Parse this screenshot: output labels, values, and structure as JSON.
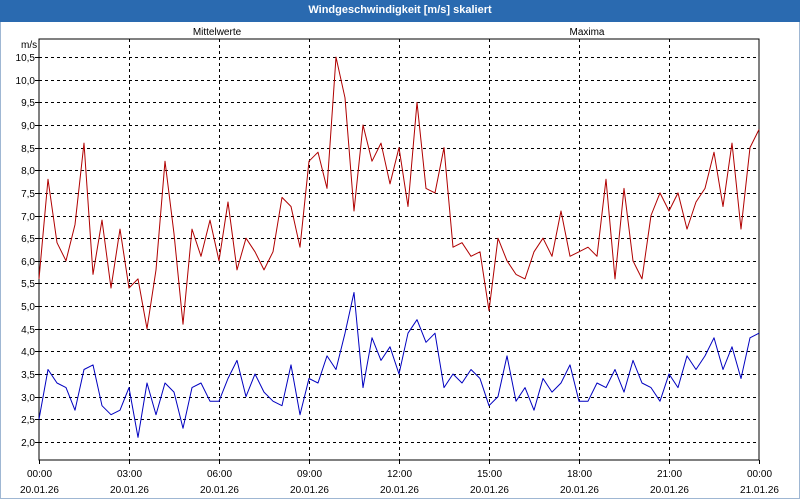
{
  "window": {
    "title": "Windgeschwindigkeit [m/s] skaliert"
  },
  "chart_data": {
    "type": "line",
    "title": "Windgeschwindigkeit [m/s] skaliert",
    "ylabel": "m/s",
    "ylim": [
      1.6,
      10.9
    ],
    "yticks": [
      "2,0",
      "2,5",
      "3,0",
      "3,5",
      "4,0",
      "4,5",
      "5,0",
      "5,5",
      "6,0",
      "6,5",
      "7,0",
      "7,5",
      "8,0",
      "8,5",
      "9,0",
      "9,5",
      "10,0",
      "10,5"
    ],
    "ytick_values": [
      2.0,
      2.5,
      3.0,
      3.5,
      4.0,
      4.5,
      5.0,
      5.5,
      6.0,
      6.5,
      7.0,
      7.5,
      8.0,
      8.5,
      9.0,
      9.5,
      10.0,
      10.5
    ],
    "xlim": [
      0,
      24
    ],
    "xticks": [
      {
        "time": "00:00",
        "date": "20.01.26",
        "h": 0
      },
      {
        "time": "03:00",
        "date": "20.01.26",
        "h": 3
      },
      {
        "time": "06:00",
        "date": "20.01.26",
        "h": 6
      },
      {
        "time": "09:00",
        "date": "20.01.26",
        "h": 9
      },
      {
        "time": "12:00",
        "date": "20.01.26",
        "h": 12
      },
      {
        "time": "15:00",
        "date": "20.01.26",
        "h": 15
      },
      {
        "time": "18:00",
        "date": "20.01.26",
        "h": 18
      },
      {
        "time": "21:00",
        "date": "20.01.26",
        "h": 21
      },
      {
        "time": "00:00",
        "date": "21.01.26",
        "h": 24
      }
    ],
    "grid": true,
    "series": [
      {
        "name": "Mittelwerte",
        "color": "#0000c0",
        "x": [
          0,
          0.3,
          0.6,
          0.9,
          1.2,
          1.5,
          1.8,
          2.1,
          2.4,
          2.7,
          3.0,
          3.3,
          3.6,
          3.9,
          4.2,
          4.5,
          4.8,
          5.1,
          5.4,
          5.7,
          6.0,
          6.3,
          6.6,
          6.9,
          7.2,
          7.5,
          7.8,
          8.1,
          8.4,
          8.7,
          9.0,
          9.3,
          9.6,
          9.9,
          10.2,
          10.5,
          10.8,
          11.1,
          11.4,
          11.7,
          12.0,
          12.3,
          12.6,
          12.9,
          13.2,
          13.5,
          13.8,
          14.1,
          14.4,
          14.7,
          15.0,
          15.3,
          15.6,
          15.9,
          16.2,
          16.5,
          16.8,
          17.1,
          17.4,
          17.7,
          18.0,
          18.3,
          18.6,
          18.9,
          19.2,
          19.5,
          19.8,
          20.1,
          20.4,
          20.7,
          21.0,
          21.3,
          21.6,
          21.9,
          22.2,
          22.5,
          22.8,
          23.1,
          23.4,
          23.7,
          24.0
        ],
        "values": [
          2.5,
          3.6,
          3.3,
          3.2,
          2.7,
          3.6,
          3.7,
          2.8,
          2.6,
          2.7,
          3.2,
          2.1,
          3.3,
          2.6,
          3.3,
          3.1,
          2.3,
          3.2,
          3.3,
          2.9,
          2.9,
          3.4,
          3.8,
          3.0,
          3.5,
          3.1,
          2.9,
          2.8,
          3.7,
          2.6,
          3.4,
          3.3,
          3.9,
          3.6,
          4.4,
          5.3,
          3.2,
          4.3,
          3.8,
          4.1,
          3.5,
          4.4,
          4.7,
          4.2,
          4.4,
          3.2,
          3.5,
          3.3,
          3.6,
          3.4,
          2.8,
          3.0,
          3.9,
          2.9,
          3.2,
          2.7,
          3.4,
          3.1,
          3.3,
          3.7,
          2.9,
          2.9,
          3.3,
          3.2,
          3.6,
          3.1,
          3.8,
          3.3,
          3.2,
          2.9,
          3.5,
          3.2,
          3.9,
          3.6,
          3.9,
          4.3,
          3.6,
          4.1,
          3.4,
          4.3,
          4.4
        ]
      },
      {
        "name": "Maxima",
        "color": "#b00000",
        "x": [
          0,
          0.3,
          0.6,
          0.9,
          1.2,
          1.5,
          1.8,
          2.1,
          2.4,
          2.7,
          3.0,
          3.3,
          3.6,
          3.9,
          4.2,
          4.5,
          4.8,
          5.1,
          5.4,
          5.7,
          6.0,
          6.3,
          6.6,
          6.9,
          7.2,
          7.5,
          7.8,
          8.1,
          8.4,
          8.7,
          9.0,
          9.3,
          9.6,
          9.9,
          10.2,
          10.5,
          10.8,
          11.1,
          11.4,
          11.7,
          12.0,
          12.3,
          12.6,
          12.9,
          13.2,
          13.5,
          13.8,
          14.1,
          14.4,
          14.7,
          15.0,
          15.3,
          15.6,
          15.9,
          16.2,
          16.5,
          16.8,
          17.1,
          17.4,
          17.7,
          18.0,
          18.3,
          18.6,
          18.9,
          19.2,
          19.5,
          19.8,
          20.1,
          20.4,
          20.7,
          21.0,
          21.3,
          21.6,
          21.9,
          22.2,
          22.5,
          22.8,
          23.1,
          23.4,
          23.7,
          24.0
        ],
        "values": [
          5.6,
          7.8,
          6.4,
          6.0,
          6.8,
          8.6,
          5.7,
          6.9,
          5.4,
          6.7,
          5.4,
          5.6,
          4.5,
          5.8,
          8.2,
          6.6,
          4.6,
          6.7,
          6.1,
          6.9,
          6.0,
          7.3,
          5.8,
          6.5,
          6.2,
          5.8,
          6.2,
          7.4,
          7.2,
          6.3,
          8.2,
          8.4,
          7.6,
          10.5,
          9.6,
          7.1,
          9.0,
          8.2,
          8.6,
          7.7,
          8.5,
          7.2,
          9.5,
          7.6,
          7.5,
          8.5,
          6.3,
          6.4,
          6.1,
          6.2,
          4.9,
          6.5,
          6.0,
          5.7,
          5.6,
          6.2,
          6.5,
          6.1,
          7.1,
          6.1,
          6.2,
          6.3,
          6.1,
          7.8,
          5.6,
          7.6,
          6.0,
          5.6,
          7.0,
          7.5,
          7.1,
          7.5,
          6.7,
          7.3,
          7.6,
          8.4,
          7.2,
          8.6,
          6.7,
          8.5,
          8.9
        ]
      }
    ]
  }
}
